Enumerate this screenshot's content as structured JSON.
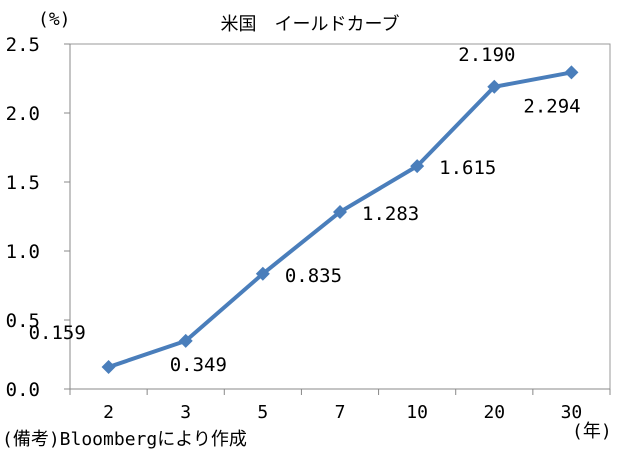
{
  "chart_data": {
    "type": "line",
    "title": "米国　イールドカーブ",
    "y_unit": "(%)",
    "x_unit": "(年)",
    "note": "(備考)Bloombergにより作成",
    "categories": [
      "2",
      "3",
      "5",
      "7",
      "10",
      "20",
      "30"
    ],
    "series": [
      {
        "values": [
          0.159,
          0.349,
          0.835,
          1.283,
          1.615,
          2.19,
          2.294
        ],
        "labels": [
          "0.159",
          "0.349",
          "0.835",
          "1.283",
          "1.615",
          "2.190",
          "2.294"
        ],
        "color": "#4a7ebb"
      }
    ],
    "ylim": [
      0,
      2.5
    ],
    "yticks": [
      "0.0",
      "0.5",
      "1.0",
      "1.5",
      "2.0",
      "2.5"
    ],
    "grid": false,
    "legend": "none"
  }
}
